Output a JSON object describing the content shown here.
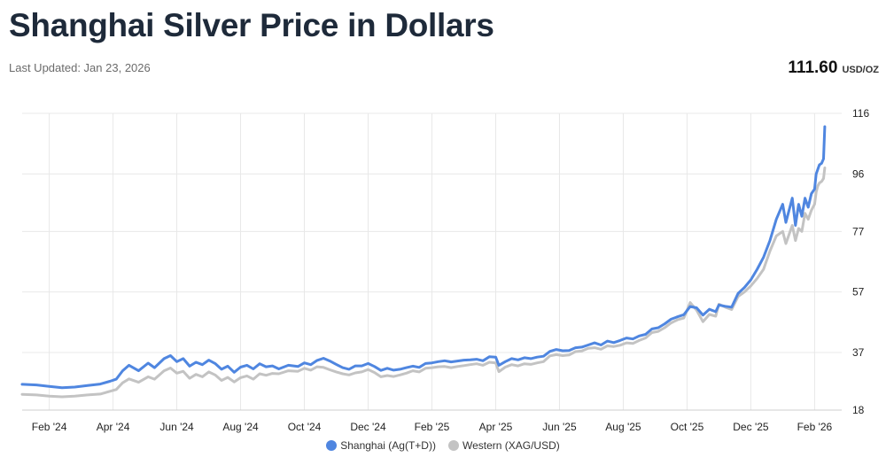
{
  "header": {
    "title": "Shanghai Silver Price in Dollars",
    "last_updated": "Last Updated: Jan 23, 2026",
    "price": "111.60",
    "unit": "USD/OZ"
  },
  "colors": {
    "shanghai": "#4f86e0",
    "western": "#c3c3c3",
    "grid": "#e8e8e8",
    "axis": "#cfcfcf"
  },
  "chart_data": {
    "type": "line",
    "title": "Shanghai Silver Price in Dollars",
    "xlabel": "",
    "ylabel": "USD/OZ",
    "x_unit": "months since Jan 2024",
    "xlim": [
      0.15,
      25.85
    ],
    "ylim": [
      18,
      116
    ],
    "y_ticks": [
      18,
      37,
      57,
      77,
      96,
      116
    ],
    "x_ticks": [
      {
        "x": 1,
        "label": "Feb '24"
      },
      {
        "x": 3,
        "label": "Apr '24"
      },
      {
        "x": 5,
        "label": "Jun '24"
      },
      {
        "x": 7,
        "label": "Aug '24"
      },
      {
        "x": 9,
        "label": "Oct '24"
      },
      {
        "x": 11,
        "label": "Dec '24"
      },
      {
        "x": 13,
        "label": "Feb '25"
      },
      {
        "x": 15,
        "label": "Apr '25"
      },
      {
        "x": 17,
        "label": "Jun '25"
      },
      {
        "x": 19,
        "label": "Aug '25"
      },
      {
        "x": 21,
        "label": "Oct '25"
      },
      {
        "x": 23,
        "label": "Dec '25"
      },
      {
        "x": 25,
        "label": "Feb '26"
      }
    ],
    "grid": true,
    "legend_position": "bottom-center",
    "series": [
      {
        "name": "Shanghai (Ag(T+D))",
        "x": [
          0.15,
          0.6,
          1.0,
          1.4,
          1.8,
          2.2,
          2.6,
          2.9,
          3.1,
          3.3,
          3.5,
          3.8,
          4.1,
          4.3,
          4.6,
          4.8,
          5.0,
          5.2,
          5.4,
          5.6,
          5.8,
          6.0,
          6.2,
          6.4,
          6.6,
          6.8,
          7.0,
          7.2,
          7.4,
          7.6,
          7.8,
          8.0,
          8.2,
          8.5,
          8.8,
          9.0,
          9.2,
          9.4,
          9.6,
          9.8,
          10.0,
          10.2,
          10.4,
          10.6,
          10.8,
          11.0,
          11.2,
          11.4,
          11.6,
          11.8,
          12.0,
          12.2,
          12.4,
          12.6,
          12.8,
          13.0,
          13.2,
          13.4,
          13.6,
          13.8,
          14.0,
          14.2,
          14.4,
          14.6,
          14.8,
          15.0,
          15.1,
          15.3,
          15.5,
          15.7,
          15.9,
          16.1,
          16.3,
          16.5,
          16.7,
          16.9,
          17.1,
          17.3,
          17.5,
          17.7,
          17.9,
          18.1,
          18.3,
          18.5,
          18.7,
          18.9,
          19.1,
          19.3,
          19.5,
          19.7,
          19.9,
          20.1,
          20.3,
          20.5,
          20.7,
          20.9,
          21.1,
          21.3,
          21.5,
          21.7,
          21.9,
          22.0,
          22.2,
          22.4,
          22.6,
          22.8,
          23.0,
          23.2,
          23.4,
          23.6,
          23.8,
          24.0,
          24.1,
          24.3,
          24.4,
          24.5,
          24.6,
          24.7,
          24.8,
          24.9,
          25.0,
          25.05,
          25.1,
          25.15,
          25.22,
          25.28,
          25.32
        ],
        "values": [
          26.5,
          26.3,
          25.8,
          25.4,
          25.6,
          26.1,
          26.6,
          27.5,
          28.2,
          31.0,
          32.8,
          31.0,
          33.5,
          32.0,
          35.0,
          36.0,
          34.0,
          35.0,
          32.5,
          33.8,
          33.0,
          34.5,
          33.4,
          31.5,
          32.5,
          30.5,
          32.2,
          32.8,
          31.6,
          33.3,
          32.3,
          32.6,
          31.6,
          32.8,
          32.4,
          33.6,
          33.0,
          34.4,
          35.1,
          34.2,
          33.1,
          32.0,
          31.5,
          32.6,
          32.6,
          33.4,
          32.4,
          31.1,
          31.8,
          31.2,
          31.5,
          32.0,
          32.5,
          32.1,
          33.4,
          33.6,
          34.0,
          34.3,
          33.9,
          34.2,
          34.5,
          34.6,
          34.8,
          34.3,
          35.6,
          35.5,
          32.8,
          34.0,
          35.0,
          34.6,
          35.3,
          35.0,
          35.5,
          35.8,
          37.4,
          38.0,
          37.6,
          37.7,
          38.6,
          38.8,
          39.5,
          40.2,
          39.5,
          40.8,
          40.3,
          41.0,
          41.8,
          41.5,
          42.5,
          43.0,
          44.8,
          45.2,
          46.5,
          48.0,
          48.8,
          49.5,
          52.2,
          51.8,
          49.4,
          51.3,
          50.5,
          52.7,
          52.3,
          52.0,
          56.5,
          58.5,
          61.0,
          64.5,
          68.5,
          74.0,
          81.0,
          86.0,
          80.0,
          88.0,
          79.0,
          86.0,
          82.0,
          88.0,
          85.0,
          89.5,
          91.0,
          96.0,
          97.5,
          99.0,
          99.5,
          101.0,
          111.6
        ]
      },
      {
        "name": "Western (XAG/USD)",
        "x": [
          0.15,
          0.6,
          1.0,
          1.4,
          1.8,
          2.2,
          2.6,
          2.9,
          3.1,
          3.3,
          3.5,
          3.8,
          4.1,
          4.3,
          4.6,
          4.8,
          5.0,
          5.2,
          5.4,
          5.6,
          5.8,
          6.0,
          6.2,
          6.4,
          6.6,
          6.8,
          7.0,
          7.2,
          7.4,
          7.6,
          7.8,
          8.0,
          8.2,
          8.5,
          8.8,
          9.0,
          9.2,
          9.4,
          9.6,
          9.8,
          10.0,
          10.2,
          10.4,
          10.6,
          10.8,
          11.0,
          11.2,
          11.4,
          11.6,
          11.8,
          12.0,
          12.2,
          12.4,
          12.6,
          12.8,
          13.0,
          13.2,
          13.4,
          13.6,
          13.8,
          14.0,
          14.2,
          14.4,
          14.6,
          14.8,
          15.0,
          15.1,
          15.3,
          15.5,
          15.7,
          15.9,
          16.1,
          16.3,
          16.5,
          16.7,
          16.9,
          17.1,
          17.3,
          17.5,
          17.7,
          17.9,
          18.1,
          18.3,
          18.5,
          18.7,
          18.9,
          19.1,
          19.3,
          19.5,
          19.7,
          19.9,
          20.1,
          20.3,
          20.5,
          20.7,
          20.9,
          21.1,
          21.3,
          21.5,
          21.7,
          21.9,
          22.0,
          22.2,
          22.4,
          22.6,
          22.8,
          23.0,
          23.2,
          23.4,
          23.6,
          23.8,
          24.0,
          24.1,
          24.3,
          24.4,
          24.5,
          24.6,
          24.7,
          24.8,
          24.9,
          25.0,
          25.05,
          25.1,
          25.15,
          25.22,
          25.28,
          25.32
        ],
        "values": [
          23.2,
          23.0,
          22.6,
          22.4,
          22.6,
          23.0,
          23.3,
          24.2,
          24.8,
          27.0,
          28.3,
          27.2,
          29.0,
          28.2,
          31.0,
          31.9,
          30.2,
          30.8,
          28.5,
          29.8,
          29.0,
          30.6,
          29.6,
          27.8,
          28.8,
          27.3,
          28.7,
          29.3,
          28.2,
          30.0,
          29.5,
          30.1,
          30.0,
          31.0,
          30.8,
          31.8,
          31.2,
          32.3,
          32.1,
          31.3,
          30.6,
          30.0,
          29.6,
          30.3,
          30.6,
          31.4,
          30.4,
          29.0,
          29.4,
          29.1,
          29.6,
          30.2,
          31.0,
          30.6,
          31.8,
          32.0,
          32.3,
          32.4,
          32.0,
          32.4,
          32.7,
          33.0,
          33.3,
          32.8,
          33.8,
          33.6,
          30.7,
          32.2,
          33.0,
          32.6,
          33.3,
          33.1,
          33.6,
          34.0,
          35.9,
          36.3,
          36.0,
          36.2,
          37.3,
          37.5,
          38.4,
          38.6,
          38.1,
          39.2,
          39.0,
          39.4,
          40.2,
          40.0,
          41.0,
          41.8,
          43.6,
          44.0,
          45.2,
          46.8,
          47.8,
          48.4,
          53.5,
          51.0,
          47.2,
          49.6,
          49.0,
          53.0,
          52.0,
          51.2,
          55.5,
          57.0,
          59.0,
          61.5,
          64.5,
          70.5,
          75.5,
          77.0,
          73.0,
          79.0,
          74.0,
          78.0,
          77.0,
          83.0,
          81.0,
          84.0,
          86.0,
          90.0,
          92.0,
          93.0,
          93.5,
          94.5,
          98.0
        ]
      }
    ]
  }
}
